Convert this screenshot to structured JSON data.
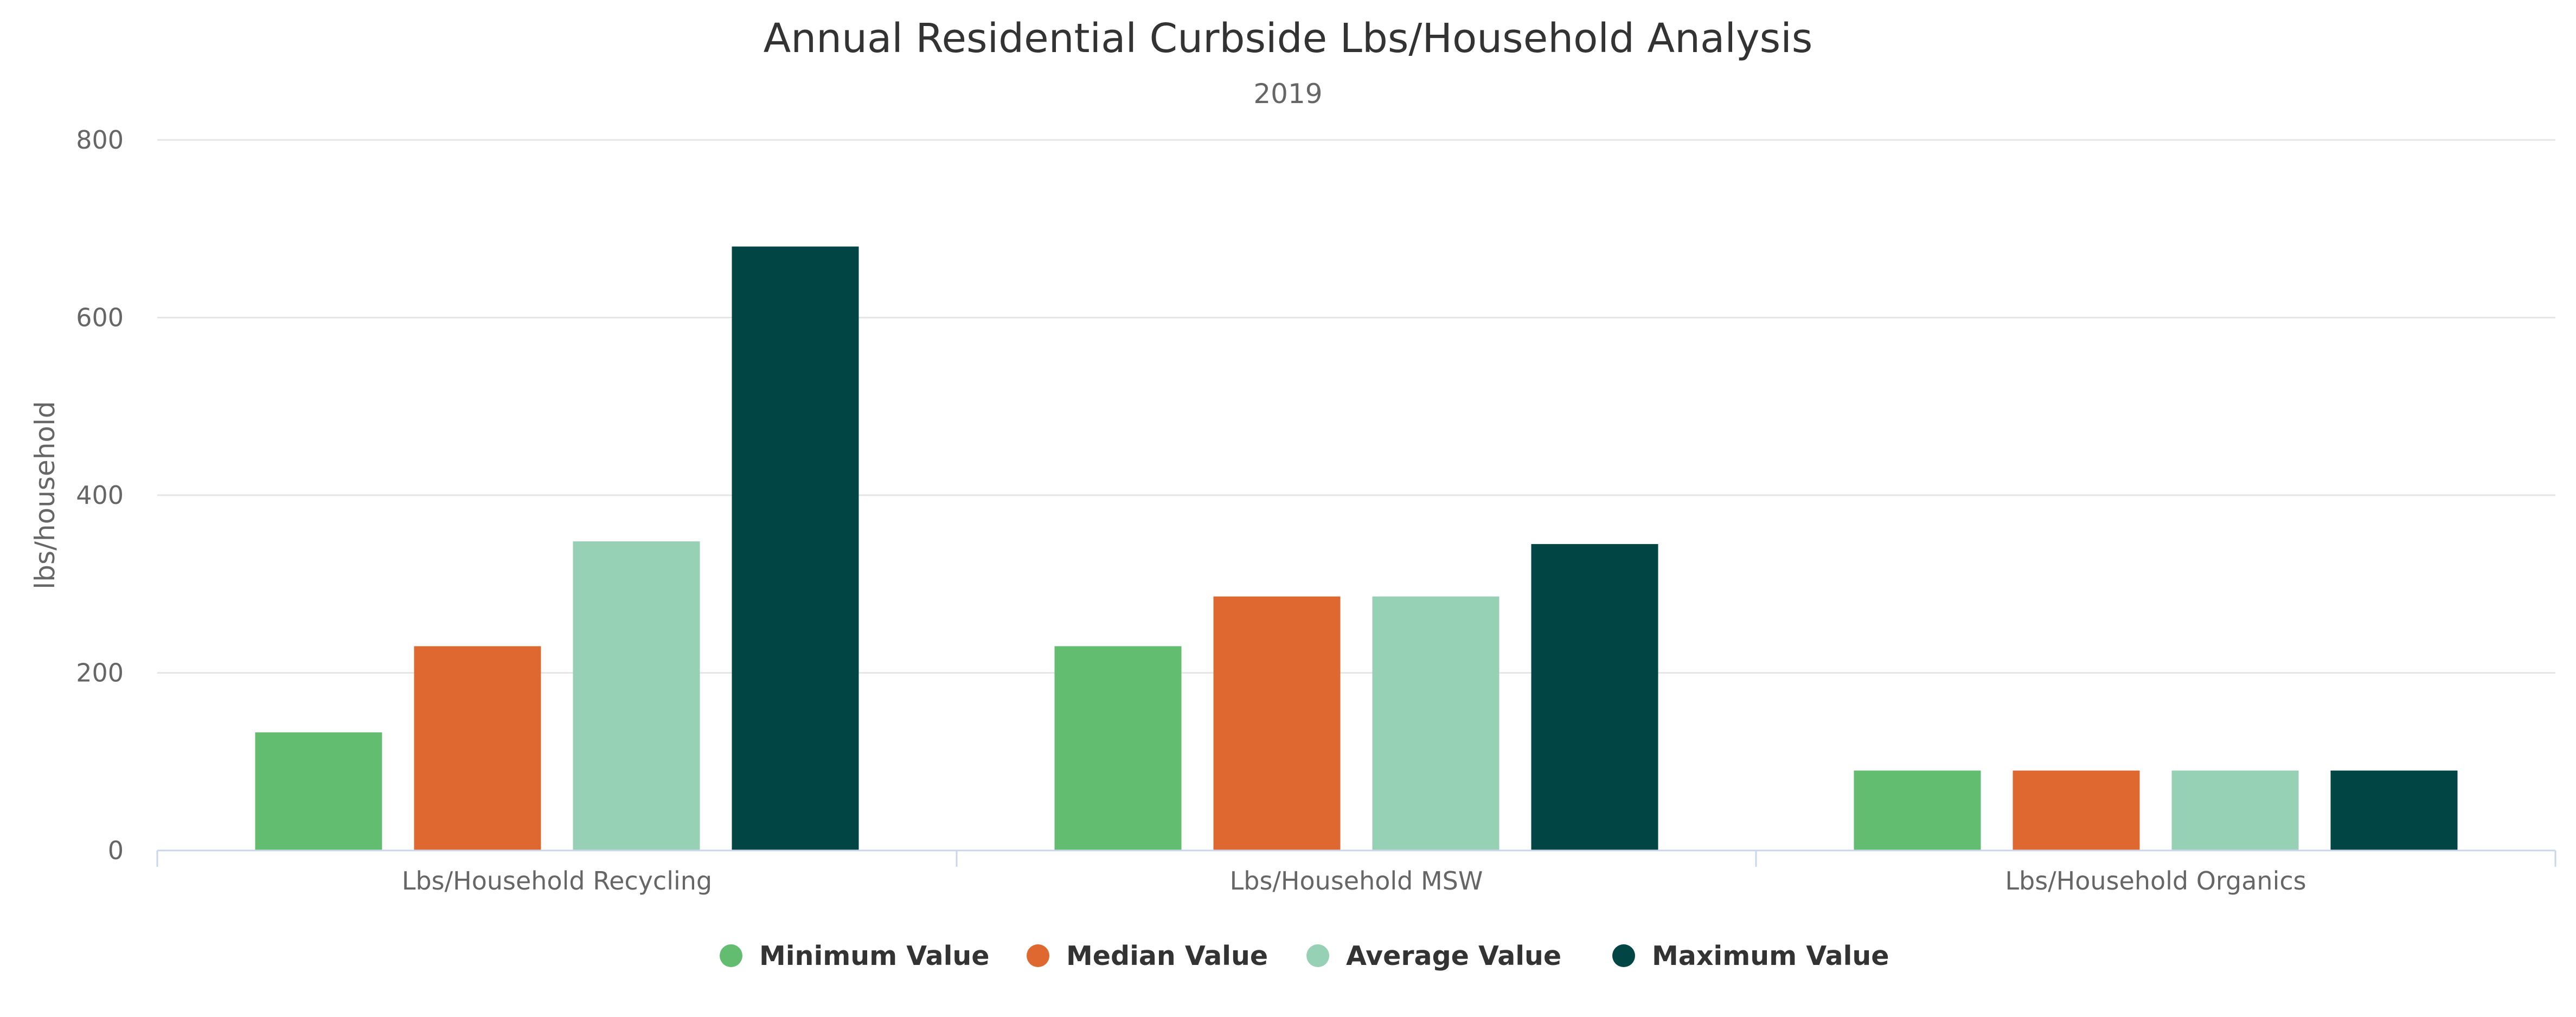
{
  "chart_data": {
    "type": "bar",
    "title": "Annual Residential Curbside Lbs/Household Analysis",
    "subtitle": "2019",
    "xlabel": "",
    "ylabel": "lbs/household",
    "ylim": [
      0,
      800
    ],
    "yticks": [
      0,
      200,
      400,
      600,
      800
    ],
    "grid": true,
    "legend_placement": "bottom-center",
    "categories": [
      "Lbs/Household Recycling",
      "Lbs/Household MSW",
      "Lbs/Household Organics"
    ],
    "series": [
      {
        "name": "Minimum Value",
        "color": "#62bd71",
        "values": [
          133,
          230,
          90
        ]
      },
      {
        "name": "Median Value",
        "color": "#df6830",
        "values": [
          230,
          286,
          90
        ]
      },
      {
        "name": "Average Value",
        "color": "#96d1b6",
        "values": [
          348,
          286,
          90
        ]
      },
      {
        "name": "Maximum Value",
        "color": "#014545",
        "values": [
          680,
          345,
          90
        ]
      }
    ]
  }
}
